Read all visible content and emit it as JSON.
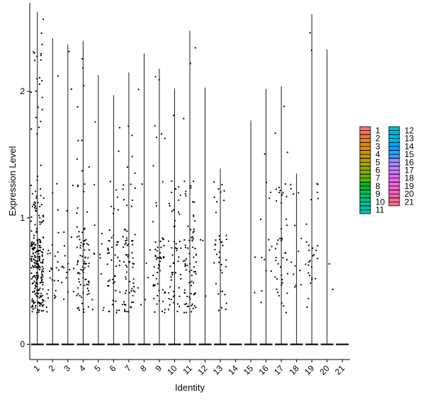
{
  "chart_data": {
    "type": "violin",
    "xlabel": "Identity",
    "ylabel": "Expression Level",
    "ylim": [
      -0.12,
      2.7
    ],
    "yticks": [
      0,
      1,
      2
    ],
    "categories": [
      "1",
      "2",
      "3",
      "4",
      "5",
      "6",
      "7",
      "8",
      "9",
      "10",
      "11",
      "12",
      "13",
      "14",
      "15",
      "16",
      "17",
      "18",
      "19",
      "20",
      "21"
    ],
    "series_max": [
      2.63,
      2.42,
      2.37,
      2.4,
      2.13,
      1.97,
      2.15,
      2.3,
      2.18,
      2.02,
      2.48,
      2.03,
      1.39,
      0.0,
      1.77,
      2.02,
      2.04,
      1.35,
      2.61,
      2.33,
      0.0
    ],
    "point_density": [
      260,
      30,
      20,
      90,
      14,
      50,
      70,
      8,
      60,
      55,
      80,
      3,
      40,
      0,
      2,
      14,
      45,
      14,
      30,
      2,
      0
    ],
    "colors": [
      "#F8766D",
      "#EA8331",
      "#DB8E00",
      "#C59900",
      "#AEA200",
      "#8DAB00",
      "#64B200",
      "#00B81F",
      "#00BD5C",
      "#00C08B",
      "#00C0AF",
      "#00BCD8",
      "#00B6EB",
      "#06A4FF",
      "#35A2FF",
      "#A58AFF",
      "#C77CFF",
      "#E76BF3",
      "#FA62DB",
      "#FF62BC",
      "#FF6C91"
    ],
    "legend": {
      "position": "right",
      "columns": [
        [
          "1",
          "2",
          "3",
          "4",
          "5",
          "6",
          "7",
          "8",
          "9",
          "10",
          "11"
        ],
        [
          "12",
          "13",
          "14",
          "15",
          "16",
          "17",
          "18",
          "19",
          "20",
          "21"
        ]
      ]
    },
    "grid": false
  }
}
